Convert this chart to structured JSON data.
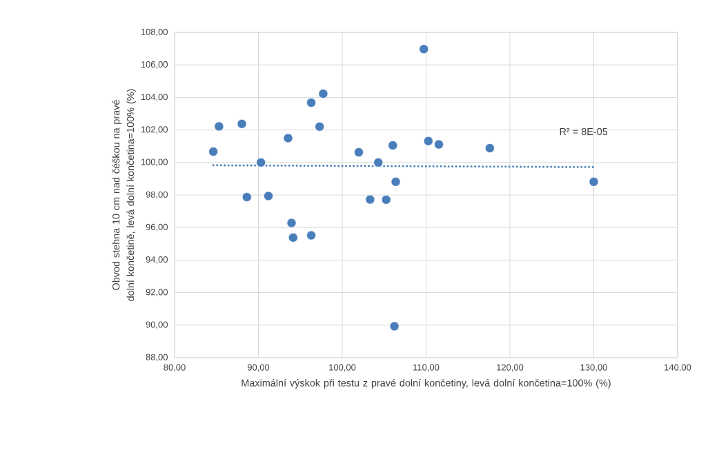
{
  "chart_data": {
    "type": "scatter",
    "xlabel": "Maximální výskok při testu z pravé dolní končetiny, levá dolní končetina=100% (%)",
    "ylabel": "Obvod stehna 10 cm nad čéškou na pravé dolní končetině, levá dolní končetina=100% (%)",
    "annotations": [
      "R² = 8E-05"
    ],
    "xlim": [
      80,
      140
    ],
    "ylim": [
      88,
      108
    ],
    "xticks": [
      {
        "value": 80,
        "label": "80,00"
      },
      {
        "value": 90,
        "label": "90,00"
      },
      {
        "value": 100,
        "label": "100,00"
      },
      {
        "value": 110,
        "label": "110,00"
      },
      {
        "value": 120,
        "label": "120,00"
      },
      {
        "value": 130,
        "label": "130,00"
      },
      {
        "value": 140,
        "label": "140,00"
      }
    ],
    "yticks": [
      {
        "value": 88,
        "label": "88,00"
      },
      {
        "value": 90,
        "label": "90,00"
      },
      {
        "value": 92,
        "label": "92,00"
      },
      {
        "value": 94,
        "label": "94,00"
      },
      {
        "value": 96,
        "label": "96,00"
      },
      {
        "value": 98,
        "label": "98,00"
      },
      {
        "value": 100,
        "label": "100,00"
      },
      {
        "value": 102,
        "label": "102,00"
      },
      {
        "value": 104,
        "label": "104,00"
      },
      {
        "value": 106,
        "label": "106,00"
      },
      {
        "value": 108,
        "label": "108,00"
      }
    ],
    "grid": true,
    "marker": "circle",
    "series": [
      {
        "color": "#4a7ebb",
        "x": [
          84.62,
          85.3,
          88.03,
          88.62,
          90.3,
          91.19,
          93.54,
          93.95,
          94.14,
          96.3,
          96.3,
          97.3,
          97.73,
          101.97,
          103.32,
          104.3,
          105.24,
          106.03,
          106.38,
          106.22,
          109.73,
          110.27,
          111.52,
          117.6,
          130.0
        ],
        "values": [
          100.67,
          102.22,
          102.37,
          97.87,
          100.0,
          97.94,
          101.5,
          96.28,
          95.38,
          103.68,
          95.52,
          102.21,
          104.23,
          100.63,
          97.72,
          100.0,
          97.71,
          101.05,
          98.81,
          89.93,
          106.97,
          101.32,
          101.11,
          100.88,
          98.81
        ]
      },
      {
        "type": "line",
        "line_style": "dotted",
        "marker": "none",
        "color": "#4a7ebb",
        "x": [
          84.62,
          130.0
        ],
        "values": [
          99.83,
          99.72
        ]
      }
    ]
  }
}
